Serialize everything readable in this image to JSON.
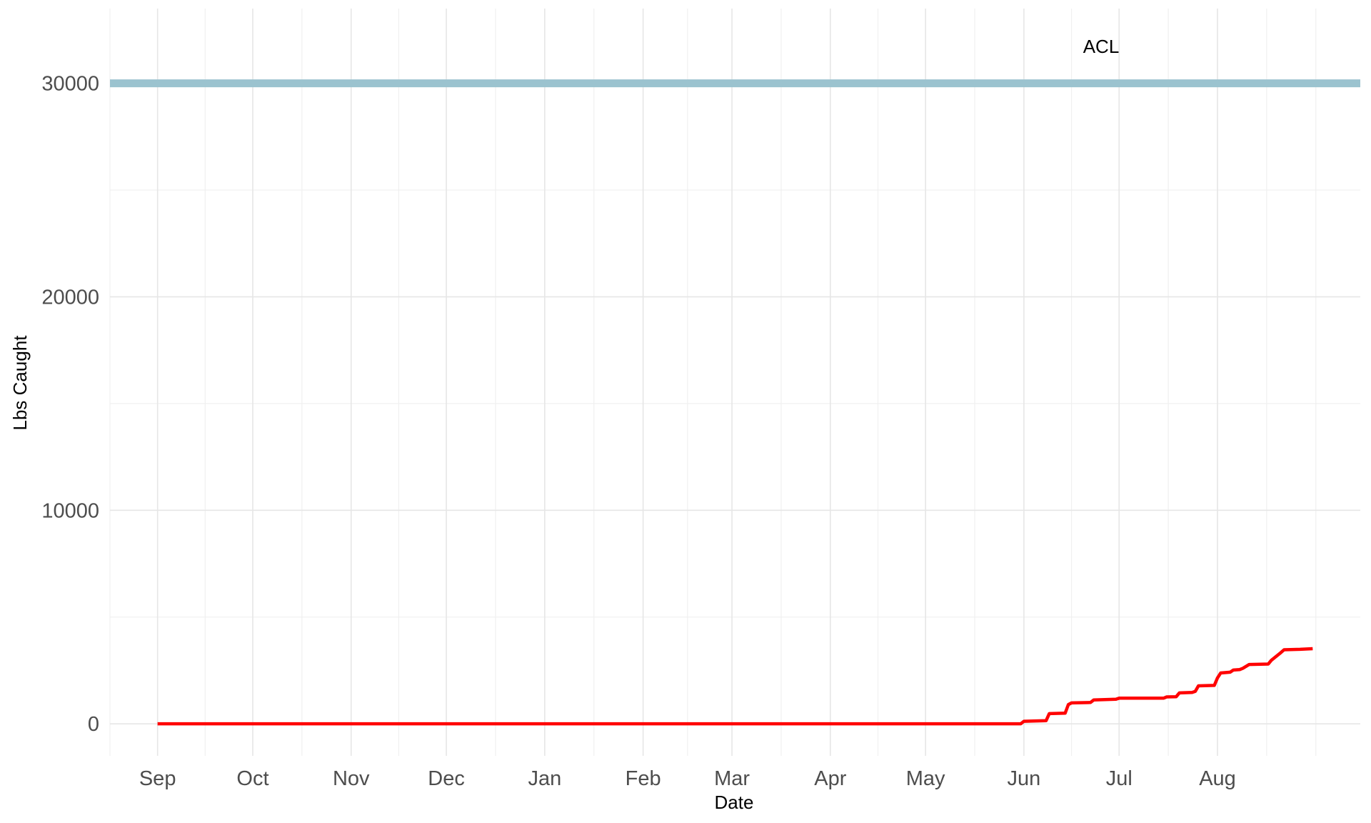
{
  "chart_data": {
    "type": "line",
    "title": "",
    "xlabel": "Date",
    "ylabel": "Lbs Caught",
    "x_tick_labels": [
      "Sep",
      "Oct",
      "Nov",
      "Dec",
      "Jan",
      "Feb",
      "Mar",
      "Apr",
      "May",
      "Jun",
      "Jul",
      "Aug"
    ],
    "x_ticks": [
      "2000-09-01",
      "2000-10-01",
      "2000-11-01",
      "2000-12-01",
      "2001-01-01",
      "2001-02-01",
      "2001-03-01",
      "2001-04-01",
      "2001-05-01",
      "2001-06-01",
      "2001-07-01",
      "2001-08-01"
    ],
    "x_domain": [
      "2000-08-17",
      "2001-09-15"
    ],
    "y_ticks": [
      0,
      10000,
      20000,
      30000
    ],
    "y_tick_labels": [
      "0",
      "10000",
      "20000",
      "30000"
    ],
    "ylim": [
      -1500,
      33500
    ],
    "grid": true,
    "reference_line": {
      "label": "ACL",
      "value": 30000,
      "color": "#9bc3cf"
    },
    "series": [
      {
        "color": "#ff0000",
        "points": [
          [
            "2000-09-01",
            0
          ],
          [
            "2001-05-31",
            0
          ],
          [
            "2001-06-01",
            120
          ],
          [
            "2001-06-08",
            150
          ],
          [
            "2001-06-09",
            480
          ],
          [
            "2001-06-14",
            500
          ],
          [
            "2001-06-15",
            900
          ],
          [
            "2001-06-16",
            980
          ],
          [
            "2001-06-22",
            1000
          ],
          [
            "2001-06-23",
            1120
          ],
          [
            "2001-06-30",
            1150
          ],
          [
            "2001-07-01",
            1200
          ],
          [
            "2001-07-15",
            1200
          ],
          [
            "2001-07-16",
            1260
          ],
          [
            "2001-07-19",
            1270
          ],
          [
            "2001-07-20",
            1450
          ],
          [
            "2001-07-24",
            1470
          ],
          [
            "2001-07-25",
            1520
          ],
          [
            "2001-07-26",
            1780
          ],
          [
            "2001-07-31",
            1800
          ],
          [
            "2001-08-01",
            2150
          ],
          [
            "2001-08-02",
            2380
          ],
          [
            "2001-08-05",
            2420
          ],
          [
            "2001-08-06",
            2520
          ],
          [
            "2001-08-08",
            2540
          ],
          [
            "2001-08-09",
            2600
          ],
          [
            "2001-08-11",
            2780
          ],
          [
            "2001-08-17",
            2800
          ],
          [
            "2001-08-18",
            2980
          ],
          [
            "2001-08-21",
            3340
          ],
          [
            "2001-08-22",
            3470
          ],
          [
            "2001-08-27",
            3490
          ],
          [
            "2001-08-31",
            3520
          ]
        ]
      }
    ]
  }
}
